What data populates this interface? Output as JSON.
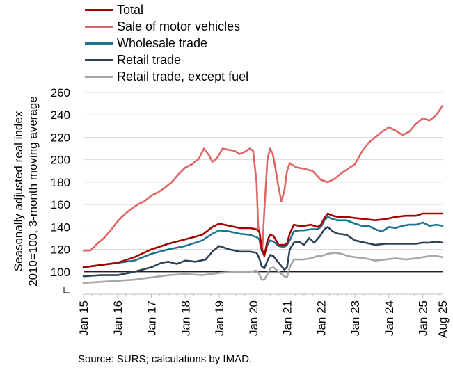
{
  "chart_data": {
    "type": "line",
    "title": "",
    "ylabel": "Seasonally adjusted real index 2010=100, 3-month moving average",
    "ylabel_lines": [
      "Seasonally adjusted real index",
      "2010=100, 3-month moving average"
    ],
    "xlabel": "",
    "ylim": [
      80,
      260
    ],
    "yticks": [
      100,
      120,
      140,
      160,
      180,
      200,
      220,
      240,
      260
    ],
    "ytick_labels": [
      "100",
      "120",
      "140",
      "160",
      "180",
      "200",
      "220",
      "240",
      "260"
    ],
    "xlim": [
      2015.0,
      2025.583
    ],
    "xticks": [
      2015.0,
      2016.0,
      2017.0,
      2018.0,
      2019.0,
      2020.0,
      2021.0,
      2022.0,
      2023.0,
      2024.0,
      2025.0,
      2025.583
    ],
    "xtick_labels": [
      "Jan 15",
      "Jan 16",
      "Jan 17",
      "Jan 18",
      "Jan 19",
      "Jan 20",
      "Jan 21",
      "Jan 22",
      "Jan 23",
      "Jan 24",
      "Jan 25",
      "Aug 25"
    ],
    "grid": true,
    "reference_line": 100,
    "legend_position": "top",
    "source": "Source: SURS; calculations by IMAD.",
    "series": [
      {
        "name": "Total",
        "color": "#a80000",
        "x": [
          2015.0,
          2015.5,
          2016.0,
          2016.5,
          2017.0,
          2017.5,
          2018.0,
          2018.5,
          2018.8,
          2019.0,
          2019.3,
          2019.6,
          2019.9,
          2020.1,
          2020.18,
          2020.25,
          2020.33,
          2020.42,
          2020.5,
          2020.6,
          2020.75,
          2020.92,
          2021.0,
          2021.08,
          2021.2,
          2021.35,
          2021.5,
          2021.7,
          2021.9,
          2022.0,
          2022.1,
          2022.2,
          2022.35,
          2022.5,
          2022.75,
          2023.0,
          2023.3,
          2023.6,
          2023.9,
          2024.2,
          2024.5,
          2024.8,
          2025.0,
          2025.2,
          2025.4,
          2025.583
        ],
        "y": [
          104,
          106,
          108,
          113,
          120,
          125,
          129,
          133,
          140,
          143,
          141,
          139,
          139,
          138,
          136,
          121,
          114,
          128,
          133,
          132,
          124,
          124,
          125,
          134,
          142,
          141,
          141,
          142,
          140,
          142,
          148,
          152,
          150,
          149,
          149,
          148,
          147,
          146,
          147,
          149,
          150,
          150,
          152,
          152,
          152,
          152
        ]
      },
      {
        "name": "Sale of motor vehicles",
        "color": "#e06666",
        "x": [
          2015.0,
          2015.2,
          2015.4,
          2015.6,
          2015.8,
          2016.0,
          2016.2,
          2016.4,
          2016.6,
          2016.8,
          2017.0,
          2017.2,
          2017.4,
          2017.6,
          2017.8,
          2018.0,
          2018.2,
          2018.4,
          2018.55,
          2018.7,
          2018.8,
          2018.95,
          2019.1,
          2019.25,
          2019.45,
          2019.6,
          2019.75,
          2019.9,
          2020.0,
          2020.1,
          2020.15,
          2020.2,
          2020.27,
          2020.33,
          2020.42,
          2020.5,
          2020.58,
          2020.67,
          2020.75,
          2020.83,
          2020.92,
          2021.0,
          2021.08,
          2021.17,
          2021.3,
          2021.5,
          2021.75,
          2022.0,
          2022.2,
          2022.4,
          2022.6,
          2022.8,
          2023.0,
          2023.2,
          2023.4,
          2023.6,
          2023.8,
          2024.0,
          2024.2,
          2024.4,
          2024.6,
          2024.8,
          2025.0,
          2025.2,
          2025.4,
          2025.583
        ],
        "y": [
          119,
          119,
          125,
          130,
          137,
          145,
          151,
          156,
          160,
          163,
          168,
          171,
          175,
          180,
          187,
          193,
          196,
          201,
          210,
          204,
          198,
          202,
          210,
          209,
          208,
          205,
          207,
          210,
          208,
          180,
          140,
          133,
          120,
          155,
          200,
          210,
          205,
          190,
          175,
          163,
          172,
          190,
          197,
          195,
          193,
          192,
          190,
          182,
          180,
          183,
          188,
          192,
          196,
          207,
          215,
          220,
          225,
          229,
          226,
          222,
          225,
          232,
          237,
          235,
          240,
          248
        ]
      },
      {
        "name": "Wholesale trade",
        "color": "#1f7391",
        "x": [
          2015.0,
          2015.5,
          2016.0,
          2016.5,
          2017.0,
          2017.5,
          2018.0,
          2018.5,
          2018.8,
          2019.0,
          2019.3,
          2019.6,
          2019.9,
          2020.1,
          2020.18,
          2020.25,
          2020.33,
          2020.42,
          2020.5,
          2020.6,
          2020.75,
          2020.92,
          2021.0,
          2021.08,
          2021.2,
          2021.35,
          2021.5,
          2021.7,
          2021.9,
          2022.0,
          2022.1,
          2022.2,
          2022.35,
          2022.5,
          2022.75,
          2023.0,
          2023.2,
          2023.4,
          2023.6,
          2023.8,
          2024.0,
          2024.2,
          2024.4,
          2024.6,
          2024.8,
          2025.0,
          2025.2,
          2025.4,
          2025.583
        ],
        "y": [
          104,
          106,
          108,
          110,
          116,
          120,
          123,
          128,
          134,
          137,
          136,
          134,
          133,
          131,
          129,
          119,
          115,
          124,
          128,
          127,
          123,
          122,
          124,
          128,
          136,
          137,
          137,
          138,
          138,
          140,
          146,
          149,
          147,
          146,
          146,
          143,
          141,
          141,
          138,
          136,
          140,
          139,
          141,
          142,
          142,
          144,
          141,
          142,
          141
        ]
      },
      {
        "name": "Retail trade",
        "color": "#2e4157",
        "x": [
          2015.0,
          2015.5,
          2016.0,
          2016.5,
          2017.0,
          2017.3,
          2017.5,
          2017.75,
          2018.0,
          2018.3,
          2018.6,
          2018.8,
          2019.0,
          2019.3,
          2019.6,
          2019.9,
          2020.1,
          2020.18,
          2020.25,
          2020.33,
          2020.42,
          2020.5,
          2020.6,
          2020.75,
          2020.92,
          2021.0,
          2021.08,
          2021.2,
          2021.35,
          2021.5,
          2021.65,
          2021.8,
          2021.95,
          2022.1,
          2022.2,
          2022.35,
          2022.5,
          2022.75,
          2023.0,
          2023.3,
          2023.6,
          2023.9,
          2024.2,
          2024.5,
          2024.8,
          2025.0,
          2025.2,
          2025.4,
          2025.583
        ],
        "y": [
          96,
          97,
          97,
          100,
          104,
          108,
          109,
          107,
          110,
          109,
          111,
          118,
          123,
          120,
          118,
          118,
          117,
          112,
          105,
          103,
          110,
          115,
          114,
          108,
          102,
          104,
          120,
          126,
          127,
          124,
          130,
          126,
          131,
          138,
          140,
          136,
          134,
          133,
          128,
          126,
          124,
          125,
          125,
          125,
          125,
          126,
          126,
          127,
          126
        ]
      },
      {
        "name": "Retail trade, except fuel",
        "color": "#a6a6a6",
        "x": [
          2015.0,
          2015.5,
          2016.0,
          2016.5,
          2017.0,
          2017.5,
          2018.0,
          2018.5,
          2019.0,
          2019.5,
          2019.9,
          2020.1,
          2020.18,
          2020.25,
          2020.33,
          2020.42,
          2020.5,
          2020.6,
          2020.75,
          2020.92,
          2021.0,
          2021.08,
          2021.2,
          2021.35,
          2021.5,
          2021.7,
          2021.9,
          2022.0,
          2022.2,
          2022.4,
          2022.6,
          2022.8,
          2023.0,
          2023.3,
          2023.6,
          2023.9,
          2024.2,
          2024.5,
          2024.8,
          2025.0,
          2025.2,
          2025.4,
          2025.583
        ],
        "y": [
          90,
          91,
          92,
          93,
          95,
          97,
          98,
          97,
          99,
          100,
          100,
          101,
          98,
          93,
          93,
          98,
          103,
          104,
          100,
          96,
          95,
          104,
          111,
          111,
          111,
          112,
          114,
          114,
          116,
          117,
          116,
          114,
          113,
          112,
          110,
          111,
          112,
          111,
          112,
          113,
          114,
          114,
          113
        ]
      }
    ]
  }
}
